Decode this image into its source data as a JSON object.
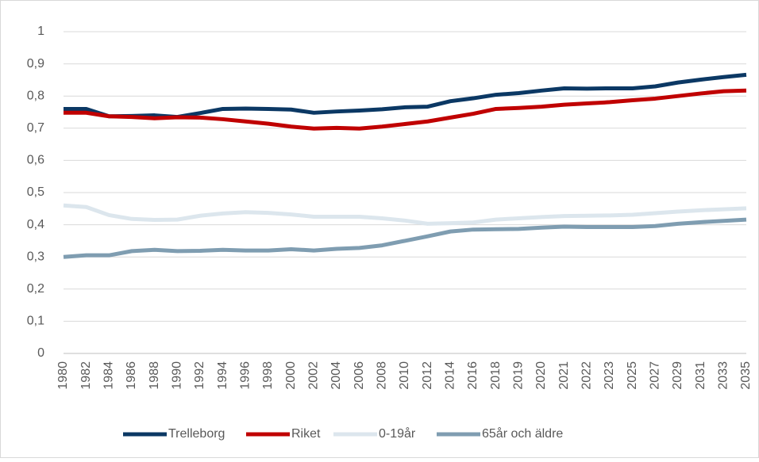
{
  "chart_data": {
    "type": "line",
    "categories": [
      "1980",
      "1982",
      "1984",
      "1986",
      "1988",
      "1990",
      "1992",
      "1994",
      "1996",
      "1998",
      "2000",
      "2002",
      "2004",
      "2006",
      "2008",
      "2010",
      "2012",
      "2014",
      "2016",
      "2018",
      "2019",
      "2020",
      "2021",
      "2022",
      "2023",
      "2025",
      "2027",
      "2029",
      "2031",
      "2033",
      "2035"
    ],
    "series": [
      {
        "name": "Trelleborg",
        "color": "#0b3864",
        "values": [
          0.76,
          0.76,
          0.737,
          0.738,
          0.74,
          0.735,
          0.747,
          0.76,
          0.761,
          0.76,
          0.758,
          0.748,
          0.752,
          0.755,
          0.759,
          0.765,
          0.767,
          0.784,
          0.793,
          0.804,
          0.809,
          0.817,
          0.824,
          0.823,
          0.824,
          0.824,
          0.83,
          0.842,
          0.851,
          0.859,
          0.866
        ]
      },
      {
        "name": "Riket",
        "color": "#c00000",
        "values": [
          0.748,
          0.748,
          0.737,
          0.735,
          0.731,
          0.734,
          0.733,
          0.728,
          0.721,
          0.714,
          0.705,
          0.699,
          0.701,
          0.699,
          0.705,
          0.713,
          0.721,
          0.733,
          0.745,
          0.76,
          0.763,
          0.767,
          0.773,
          0.777,
          0.781,
          0.787,
          0.792,
          0.8,
          0.808,
          0.815,
          0.817
        ]
      },
      {
        "name": "0-19år",
        "color": "#dce6ed",
        "values": [
          0.46,
          0.455,
          0.43,
          0.418,
          0.415,
          0.416,
          0.428,
          0.435,
          0.439,
          0.437,
          0.432,
          0.425,
          0.425,
          0.425,
          0.42,
          0.413,
          0.403,
          0.405,
          0.407,
          0.416,
          0.42,
          0.424,
          0.427,
          0.428,
          0.429,
          0.431,
          0.436,
          0.441,
          0.445,
          0.448,
          0.451
        ]
      },
      {
        "name": "65år och äldre",
        "color": "#7f9db1",
        "values": [
          0.3,
          0.305,
          0.305,
          0.318,
          0.322,
          0.318,
          0.319,
          0.322,
          0.32,
          0.32,
          0.324,
          0.32,
          0.325,
          0.328,
          0.336,
          0.35,
          0.364,
          0.379,
          0.385,
          0.386,
          0.387,
          0.391,
          0.394,
          0.393,
          0.393,
          0.393,
          0.396,
          0.403,
          0.408,
          0.412,
          0.416
        ]
      }
    ],
    "ylim": [
      0,
      1
    ],
    "yticks": [
      0,
      {
        "value": 0.1,
        "label": "0,1"
      },
      {
        "value": 0.2,
        "label": "0,2"
      },
      {
        "value": 0.3,
        "label": "0,3"
      },
      {
        "value": 0.4,
        "label": "0,4"
      },
      {
        "value": 0.5,
        "label": "0,5"
      },
      {
        "value": 0.6,
        "label": "0,6"
      },
      {
        "value": 0.7,
        "label": "0,7"
      },
      {
        "value": 0.8,
        "label": "0,8"
      },
      {
        "value": 0.9,
        "label": "0,9"
      },
      1
    ],
    "grid": true,
    "legend": "bottom"
  }
}
